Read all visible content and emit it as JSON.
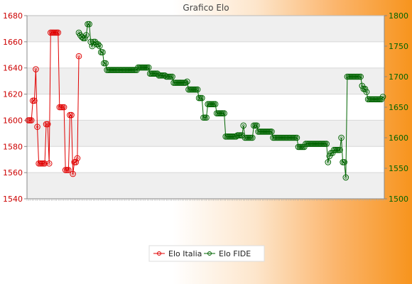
{
  "chart_data": {
    "type": "line",
    "title": "Grafico Elo",
    "xlabel": "",
    "ylabel": "",
    "y_left": {
      "ticks": [
        1540,
        1560,
        1580,
        1600,
        1620,
        1640,
        1660,
        1680
      ],
      "lim": [
        1540,
        1680
      ],
      "color": "#cc0000"
    },
    "y_right": {
      "ticks": [
        1500,
        1550,
        1600,
        1650,
        1700,
        1750,
        1800
      ],
      "lim": [
        1500,
        1800
      ],
      "color": "#006400"
    },
    "grid": true,
    "legend_position": "bottom",
    "series": [
      {
        "name": "Elo Italia",
        "axis": "left",
        "color": "#e00000",
        "values": [
          1600,
          1600,
          1600,
          1615,
          1615,
          1639,
          1595,
          1567,
          1567,
          1567,
          1567,
          1567,
          1597,
          1597,
          1567,
          1667,
          1667,
          1667,
          1667,
          1667,
          1667,
          1610,
          1610,
          1610,
          1610,
          1562,
          1562,
          1562,
          1604,
          1604,
          1559,
          1568,
          1568,
          1571,
          1649
        ]
      },
      {
        "name": "Elo FIDE",
        "axis": "right",
        "color": "#006400",
        "values": [
          1772,
          1768,
          1765,
          1763,
          1763,
          1768,
          1786,
          1786,
          1757,
          1750,
          1757,
          1757,
          1753,
          1753,
          1750,
          1740,
          1740,
          1722,
          1722,
          1711,
          1711,
          1711,
          1711,
          1711,
          1711,
          1711,
          1711,
          1711,
          1711,
          1711,
          1711,
          1711,
          1711,
          1711,
          1711,
          1711,
          1711,
          1711,
          1711,
          1711,
          1715,
          1715,
          1715,
          1715,
          1715,
          1715,
          1715,
          1715,
          1705,
          1705,
          1705,
          1705,
          1705,
          1705,
          1702,
          1702,
          1702,
          1702,
          1702,
          1700,
          1700,
          1700,
          1700,
          1700,
          1690,
          1690,
          1690,
          1690,
          1690,
          1690,
          1690,
          1690,
          1690,
          1692,
          1679,
          1679,
          1679,
          1679,
          1679,
          1679,
          1679,
          1665,
          1665,
          1665,
          1633,
          1633,
          1633,
          1655,
          1655,
          1655,
          1655,
          1655,
          1655,
          1640,
          1640,
          1640,
          1640,
          1640,
          1640,
          1602,
          1602,
          1602,
          1602,
          1602,
          1602,
          1602,
          1602,
          1604,
          1604,
          1604,
          1604,
          1620,
          1600,
          1600,
          1600,
          1600,
          1600,
          1600,
          1620,
          1620,
          1620,
          1610,
          1610,
          1610,
          1610,
          1610,
          1610,
          1610,
          1610,
          1610,
          1610,
          1600,
          1600,
          1600,
          1600,
          1600,
          1600,
          1600,
          1600,
          1600,
          1600,
          1600,
          1600,
          1600,
          1600,
          1600,
          1600,
          1600,
          1585,
          1585,
          1585,
          1585,
          1585,
          1590,
          1590,
          1590,
          1590,
          1590,
          1590,
          1590,
          1590,
          1590,
          1590,
          1590,
          1590,
          1590,
          1590,
          1590,
          1560,
          1570,
          1575,
          1575,
          1580,
          1580,
          1580,
          1580,
          1580,
          1600,
          1560,
          1560,
          1535,
          1700,
          1700,
          1700,
          1700,
          1700,
          1700,
          1700,
          1700,
          1700,
          1700,
          1685,
          1680,
          1680,
          1675,
          1663,
          1663,
          1663,
          1663,
          1663,
          1663,
          1663,
          1663,
          1663,
          1663,
          1667
        ]
      }
    ]
  }
}
